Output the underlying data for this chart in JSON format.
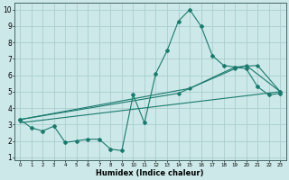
{
  "title": "",
  "xlabel": "Humidex (Indice chaleur)",
  "bg_color": "#cce8e8",
  "grid_color": "#aacece",
  "line_color": "#1a7a6e",
  "xlim": [
    -0.5,
    23.5
  ],
  "ylim": [
    0.8,
    10.4
  ],
  "xticks": [
    0,
    1,
    2,
    3,
    4,
    5,
    6,
    7,
    8,
    9,
    10,
    11,
    12,
    13,
    14,
    15,
    16,
    17,
    18,
    19,
    20,
    21,
    22,
    23
  ],
  "yticks": [
    1,
    2,
    3,
    4,
    5,
    6,
    7,
    8,
    9,
    10
  ],
  "line1_x": [
    0,
    1,
    2,
    3,
    4,
    5,
    6,
    7,
    8,
    9,
    10,
    11,
    12,
    13,
    14,
    15,
    16,
    17,
    18,
    19,
    20,
    21,
    22,
    23
  ],
  "line1_y": [
    3.3,
    2.8,
    2.6,
    2.9,
    1.9,
    2.0,
    2.1,
    2.1,
    1.5,
    1.4,
    4.8,
    3.1,
    6.1,
    7.5,
    9.3,
    10.0,
    9.0,
    7.2,
    6.6,
    6.5,
    6.4,
    5.3,
    4.8,
    4.9
  ],
  "line2_x": [
    0,
    15,
    19,
    21,
    23
  ],
  "line2_y": [
    3.3,
    5.2,
    6.5,
    6.6,
    5.0
  ],
  "line3_x": [
    0,
    14,
    19,
    20,
    23
  ],
  "line3_y": [
    3.3,
    4.9,
    6.4,
    6.6,
    5.0
  ],
  "line4_x": [
    0,
    23
  ],
  "line4_y": [
    3.1,
    5.0
  ],
  "figsize": [
    3.2,
    2.0
  ],
  "dpi": 100
}
